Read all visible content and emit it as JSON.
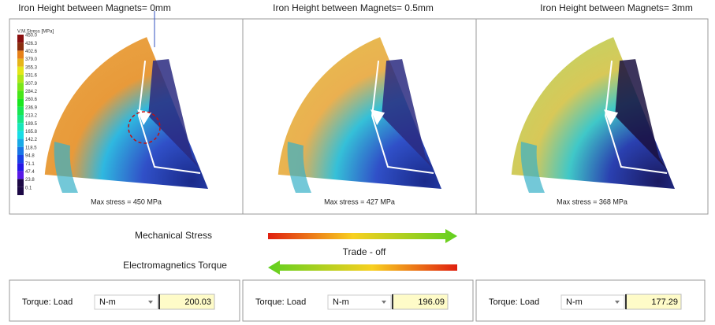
{
  "panels": [
    {
      "title": "Iron Height between Magnets= 0mm",
      "caption": "Max stress = 450 MPa"
    },
    {
      "title": "Iron Height between Magnets= 0.5mm",
      "caption": "Max stress = 427 MPa"
    },
    {
      "title": "Iron Height between Magnets= 3mm",
      "caption": "Max stress = 368 MPa"
    }
  ],
  "legend": {
    "title": "V.M.Stress [MPa]",
    "labels": [
      "450.0",
      "426.3",
      "402.6",
      "379.0",
      "355.3",
      "331.6",
      "307.9",
      "284.2",
      "260.6",
      "236.9",
      "213.2",
      "189.5",
      "165.8",
      "142.2",
      "118.5",
      "94.8",
      "71.1",
      "47.4",
      "23.8",
      "0.1"
    ]
  },
  "tradeoff": {
    "top": "Mechanical Stress",
    "bottom": "Electromagnetics Torque",
    "center": "Trade - off"
  },
  "torque": [
    {
      "label": "Torque: Load",
      "unit": "N-m",
      "value": "200.03"
    },
    {
      "label": "Torque: Load",
      "unit": "N-m",
      "value": "196.09"
    },
    {
      "label": "Torque: Load",
      "unit": "N-m",
      "value": "177.29"
    }
  ]
}
